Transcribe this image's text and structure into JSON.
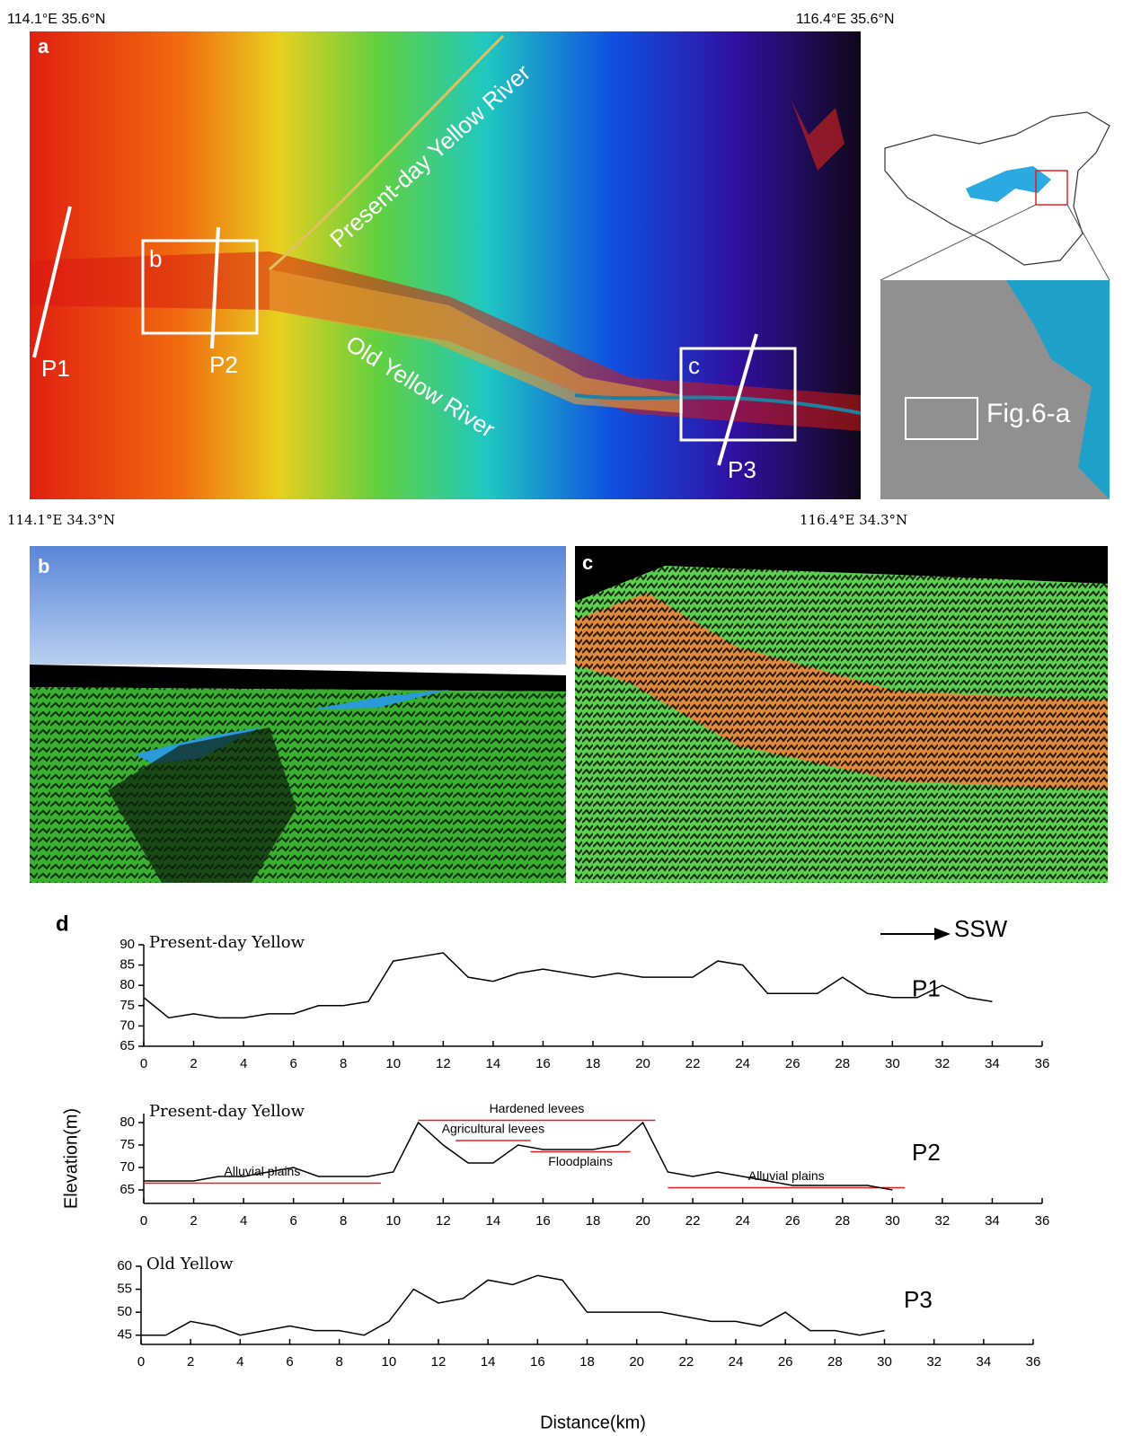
{
  "panel_a": {
    "letter": "a",
    "corner_top_left": "114.1°E 35.6°N",
    "corner_top_right": "116.4°E 35.6°N",
    "corner_bottom_left": "114.1°E 34.3°N",
    "corner_bottom_right": "116.4°E 34.3°N",
    "river_present": "Present-day Yellow River",
    "river_old": "Old Yellow River",
    "box_b": "b",
    "box_c": "c",
    "profile_1": "P1",
    "profile_2": "P2",
    "profile_3": "P3",
    "inset_label": "Fig.6-a"
  },
  "panel_b": {
    "letter": "b"
  },
  "panel_c": {
    "letter": "c"
  },
  "panel_d": {
    "letter": "d",
    "direction": "SSW",
    "ylabel": "Elevation(m)",
    "xlabel": "Distance(km)"
  },
  "chart_data": [
    {
      "type": "line",
      "title": "Present-day Yellow",
      "label": "P1",
      "color": "#000000",
      "x": [
        0,
        1,
        2,
        3,
        4,
        5,
        6,
        7,
        8,
        9,
        10,
        11,
        12,
        13,
        14,
        15,
        16,
        17,
        18,
        19,
        20,
        21,
        22,
        23,
        24,
        25,
        26,
        27,
        28,
        29,
        30,
        31,
        32,
        33,
        34
      ],
      "values": [
        77,
        72,
        73,
        72,
        72,
        73,
        73,
        75,
        75,
        76,
        86,
        87,
        88,
        82,
        81,
        83,
        84,
        83,
        82,
        83,
        82,
        82,
        82,
        86,
        85,
        78,
        78,
        78,
        82,
        78,
        77,
        77,
        80,
        77,
        76
      ],
      "xlim": [
        0,
        36
      ],
      "xticks": [
        0,
        2,
        4,
        6,
        8,
        10,
        12,
        14,
        16,
        18,
        20,
        22,
        24,
        26,
        28,
        30,
        32,
        34,
        36
      ],
      "ylim": [
        65,
        90
      ],
      "yticks": [
        65,
        70,
        75,
        80,
        85,
        90
      ]
    },
    {
      "type": "line",
      "title": "Present-day Yellow",
      "label": "P2",
      "color": "#000000",
      "x": [
        0,
        1,
        2,
        3,
        4,
        5,
        6,
        7,
        8,
        9,
        10,
        11,
        12,
        13,
        14,
        15,
        16,
        17,
        18,
        19,
        20,
        21,
        22,
        23,
        24,
        25,
        26,
        27,
        28,
        29,
        30
      ],
      "values": [
        67,
        67,
        67,
        68,
        68,
        69,
        70,
        68,
        68,
        68,
        69,
        80,
        75,
        71,
        71,
        75,
        74,
        74,
        74,
        75,
        80,
        69,
        68,
        69,
        68,
        67,
        66,
        66,
        66,
        66,
        65
      ],
      "xlim": [
        0,
        36
      ],
      "xticks": [
        0,
        2,
        4,
        6,
        8,
        10,
        12,
        14,
        16,
        18,
        20,
        22,
        24,
        26,
        28,
        30,
        32,
        34,
        36
      ],
      "ylim": [
        62,
        82
      ],
      "yticks": [
        65,
        70,
        75,
        80
      ],
      "annotations": [
        {
          "text": "Hardened levees",
          "x0": 11,
          "x1": 20.5,
          "y": 80.5
        },
        {
          "text": "Agricultural levees",
          "x0": 12.5,
          "x1": 15.5,
          "y": 76
        },
        {
          "text": "Floodplains",
          "x0": 15.5,
          "x1": 19.5,
          "y": 73.5
        },
        {
          "text": "Alluvial plains",
          "x0": 0,
          "x1": 9.5,
          "y": 66.5
        },
        {
          "text": "Alluvial plains",
          "x0": 21,
          "x1": 30.5,
          "y": 65.5
        }
      ]
    },
    {
      "type": "line",
      "title": "Old Yellow",
      "label": "P3",
      "color": "#000000",
      "x": [
        0,
        1,
        2,
        3,
        4,
        5,
        6,
        7,
        8,
        9,
        10,
        11,
        12,
        13,
        14,
        15,
        16,
        17,
        18,
        19,
        20,
        21,
        22,
        23,
        24,
        25,
        26,
        27,
        28,
        29,
        30
      ],
      "values": [
        45,
        45,
        48,
        47,
        45,
        46,
        47,
        46,
        46,
        45,
        48,
        55,
        52,
        53,
        57,
        56,
        58,
        57,
        50,
        50,
        50,
        50,
        49,
        48,
        48,
        47,
        50,
        46,
        46,
        45,
        46
      ],
      "xlim": [
        0,
        36
      ],
      "xticks": [
        0,
        2,
        4,
        6,
        8,
        10,
        12,
        14,
        16,
        18,
        20,
        22,
        24,
        26,
        28,
        30,
        32,
        34,
        36
      ],
      "ylim": [
        43,
        60
      ],
      "yticks": [
        45,
        50,
        55,
        60
      ]
    }
  ]
}
